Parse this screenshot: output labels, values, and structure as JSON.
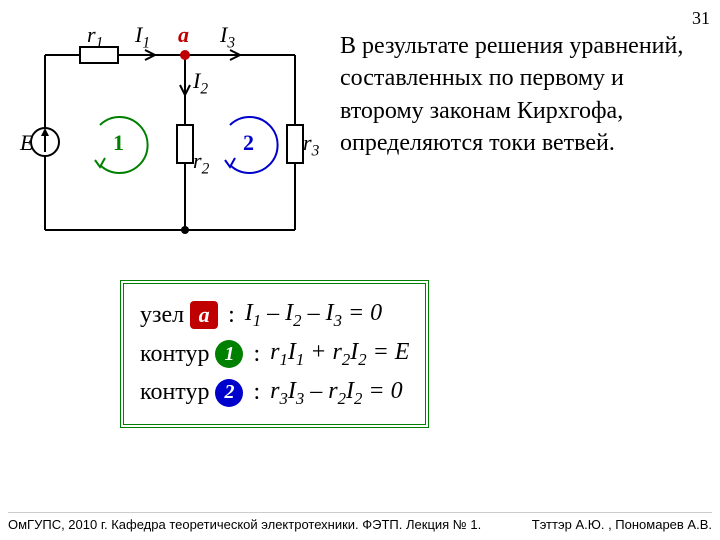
{
  "page_number": "31",
  "description": "В результате решения уравнений, составленных по первому и второму законам Кирхгофа, определяются токи ветвей.",
  "circuit": {
    "stroke": "#000000",
    "stroke_width": 2,
    "node_color": "#c00000",
    "loop1_color": "#008000",
    "loop2_color": "#0000cc",
    "labels": {
      "E": "E",
      "r1": "r",
      "r1_sub": "1",
      "r2": "r",
      "r2_sub": "2",
      "r3": "r",
      "r3_sub": "3",
      "I1": "I",
      "I1_sub": "1",
      "I2": "I",
      "I2_sub": "2",
      "I3": "I",
      "I3_sub": "3",
      "a": "a",
      "loop1": "1",
      "loop2": "2"
    }
  },
  "equations": {
    "node_label": "узел",
    "loop_label": "контур",
    "node_badge": "a",
    "loop1_badge": "1",
    "loop2_badge": "2",
    "eq1_html": "<i>I</i><span class='sub'>1</span> – <i>I</i><span class='sub'>2</span> – <i>I</i><span class='sub'>3</span> = 0",
    "eq2_html": "<i>r</i><span class='sub'>1</span><i>I</i><span class='sub'>1</span> + <i>r</i><span class='sub'>2</span><i>I</i><span class='sub'>2</span> = <i>E</i>",
    "eq3_html": "<i>r</i><span class='sub'>3</span><i>I</i><span class='sub'>3</span> – <i>r</i><span class='sub'>2</span><i>I</i><span class='sub'>2</span> = 0"
  },
  "footer_left": "ОмГУПС, 2010 г. Кафедра теоретической электротехники. ФЭТП. Лекция № 1.",
  "footer_right": "Тэттэр А.Ю. , Пономарев А.В.",
  "colors": {
    "red": "#c00000",
    "green": "#008000",
    "blue": "#0000cc",
    "black": "#000000"
  }
}
